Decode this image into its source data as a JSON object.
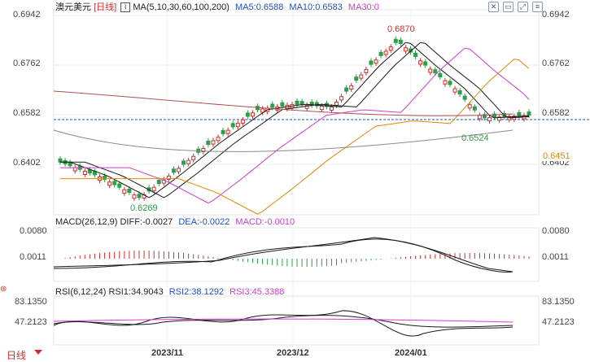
{
  "header": {
    "symbol": "澳元美元",
    "period_tag": "[日线]",
    "ma_params": "MA(5,10,30,60,100,200)",
    "ma5": "MA5:0.6588",
    "ma10": "MA10:0.6583",
    "ma30": "MA30:0"
  },
  "price_axis": {
    "left": [
      "0.6942",
      "0.6762",
      "0.6582",
      "0.6402"
    ],
    "right": [
      "0.6942",
      "0.6762",
      "0.6582",
      "0.6402"
    ],
    "current_price": "0.6451"
  },
  "annotations": {
    "high": "0.6870",
    "low_left": "0.6269",
    "low_right": "0.6524"
  },
  "macd": {
    "label": "MACD(26,12,9)",
    "diff": "DIFF:-0.0027",
    "dea": "DEA:-0.0022",
    "macd": "MACD:-0.0010",
    "axis": [
      "0.0080",
      "0.0011"
    ],
    "axis_right": [
      "0.0080",
      "0.0011"
    ]
  },
  "rsi": {
    "label": "RSI(6,12,24)",
    "rsi1": "RSI1:34.9043",
    "rsi2": "RSI2:38.1292",
    "rsi3": "RSI3:45.3388",
    "axis": [
      "83.1350",
      "47.2123"
    ],
    "axis_right": [
      "83.1350",
      "47.2123"
    ]
  },
  "footer": {
    "period": "日线",
    "x_labels": [
      "2023/11",
      "2023/12",
      "2024/01"
    ]
  },
  "colors": {
    "up": "#d23030",
    "down": "#2e9e4a",
    "ma5": "#1a1a1a",
    "ma10": "#1a1a1a",
    "ma30": "#d23bd2",
    "ma60": "#e08a00",
    "ma100": "#8a8a8a",
    "ma200": "#b05050",
    "accent": "#1f4fd1"
  },
  "icons": [
    "cross-icon",
    "rect-icon",
    "fullscreen-icon",
    "menu-icon"
  ]
}
